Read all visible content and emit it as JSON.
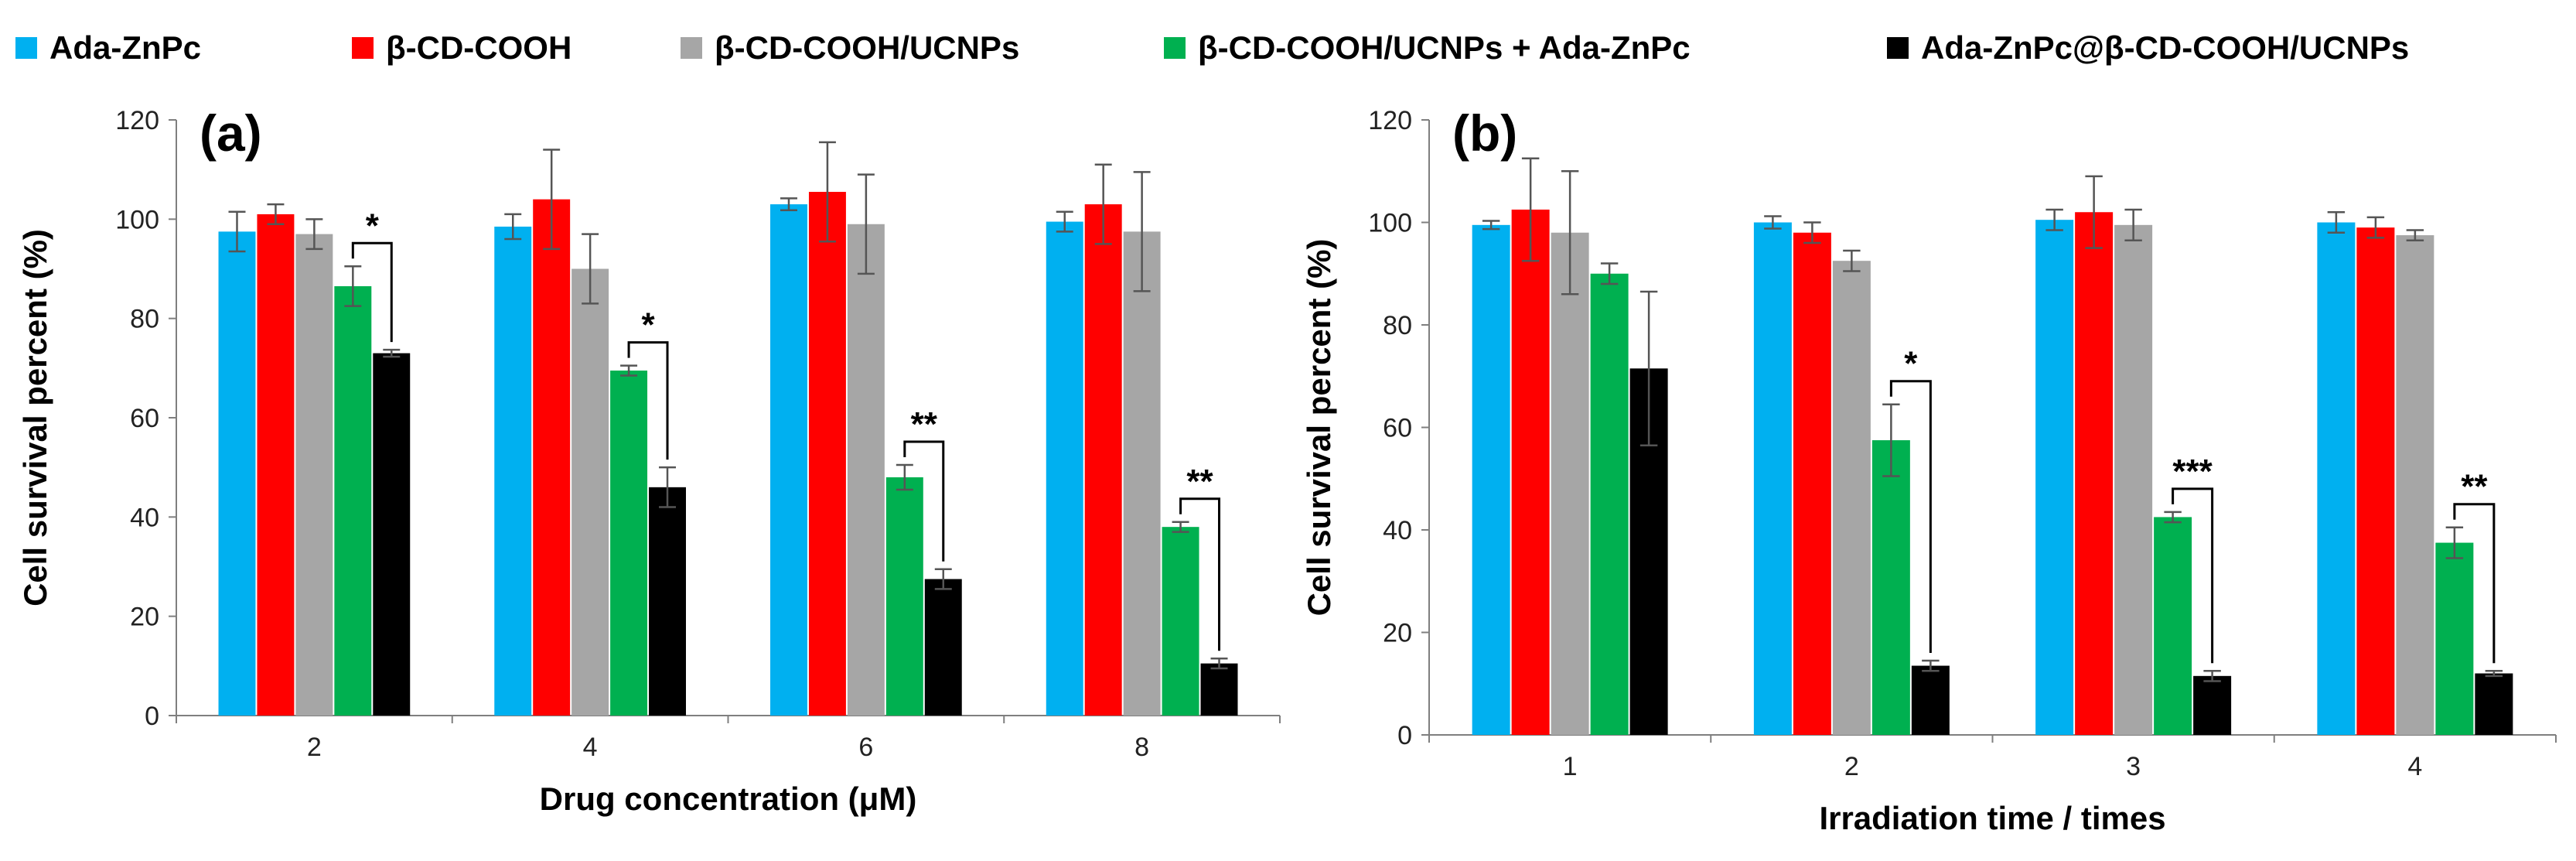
{
  "legend": [
    {
      "name": "Ada-ZnPc",
      "color": "#00B0F0"
    },
    {
      "name": "β-CD-COOH",
      "color": "#FF0000"
    },
    {
      "name": "β-CD-COOH/UCNPs",
      "color": "#A6A6A6"
    },
    {
      "name": "β-CD-COOH/UCNPs + Ada-ZnPc",
      "color": "#00B050"
    },
    {
      "name": "Ada-ZnPc@β-CD-COOH/UCNPs",
      "color": "#000000"
    }
  ],
  "chart_data": [
    {
      "type": "bar",
      "panel_label": "(a)",
      "xlabel": "Drug concentration (μM)",
      "ylabel": "Cell survival percent (%)",
      "ylim": [
        0,
        120
      ],
      "yticks": [
        0,
        20,
        40,
        60,
        80,
        100,
        120
      ],
      "categories": [
        "2",
        "4",
        "6",
        "8"
      ],
      "series": [
        {
          "name": "Ada-ZnPc",
          "values": [
            97.5,
            98.5,
            103.0,
            99.5
          ],
          "errors": [
            4,
            2.5,
            1.2,
            2
          ]
        },
        {
          "name": "β-CD-COOH",
          "values": [
            101.0,
            104.0,
            105.5,
            103.0
          ],
          "errors": [
            2,
            10,
            10,
            8
          ]
        },
        {
          "name": "β-CD-COOH/UCNPs",
          "values": [
            97.0,
            90.0,
            99.0,
            97.5
          ],
          "errors": [
            3,
            7,
            10,
            12
          ]
        },
        {
          "name": "β-CD-COOH/UCNPs + Ada-ZnPc",
          "values": [
            86.5,
            69.5,
            48.0,
            38.0
          ],
          "errors": [
            4,
            1,
            2.5,
            1
          ]
        },
        {
          "name": "Ada-ZnPc@β-CD-COOH/UCNPs",
          "values": [
            73.0,
            46.0,
            27.5,
            10.5
          ],
          "errors": [
            0.7,
            4,
            2,
            1
          ]
        }
      ],
      "significance": [
        {
          "category_index": 0,
          "label": "*"
        },
        {
          "category_index": 1,
          "label": "*"
        },
        {
          "category_index": 2,
          "label": "**"
        },
        {
          "category_index": 3,
          "label": "**"
        }
      ],
      "grid": false
    },
    {
      "type": "bar",
      "panel_label": "(b)",
      "xlabel": "Irradiation time / times",
      "ylabel": "Cell survival percent (%)",
      "ylim": [
        0,
        120
      ],
      "yticks": [
        0,
        20,
        40,
        60,
        80,
        100,
        120
      ],
      "categories": [
        "1",
        "2",
        "3",
        "4"
      ],
      "series": [
        {
          "name": "Ada-ZnPc",
          "values": [
            99.5,
            100.0,
            100.5,
            100.0
          ],
          "errors": [
            0.8,
            1.2,
            2,
            2
          ]
        },
        {
          "name": "β-CD-COOH",
          "values": [
            102.5,
            98.0,
            102.0,
            99.0
          ],
          "errors": [
            10,
            2,
            7,
            2
          ]
        },
        {
          "name": "β-CD-COOH/UCNPs",
          "values": [
            98.0,
            92.5,
            99.5,
            97.5
          ],
          "errors": [
            12,
            2,
            3,
            1
          ]
        },
        {
          "name": "β-CD-COOH/UCNPs + Ada-ZnPc",
          "values": [
            90.0,
            57.5,
            42.5,
            37.5
          ],
          "errors": [
            2,
            7,
            1,
            3
          ]
        },
        {
          "name": "Ada-ZnPc@β-CD-COOH/UCNPs",
          "values": [
            71.5,
            13.5,
            11.5,
            12.0
          ],
          "errors": [
            15,
            1,
            1,
            0.5
          ]
        }
      ],
      "significance": [
        {
          "category_index": 1,
          "label": "*"
        },
        {
          "category_index": 2,
          "label": "***"
        },
        {
          "category_index": 3,
          "label": "**"
        }
      ],
      "grid": false
    }
  ]
}
